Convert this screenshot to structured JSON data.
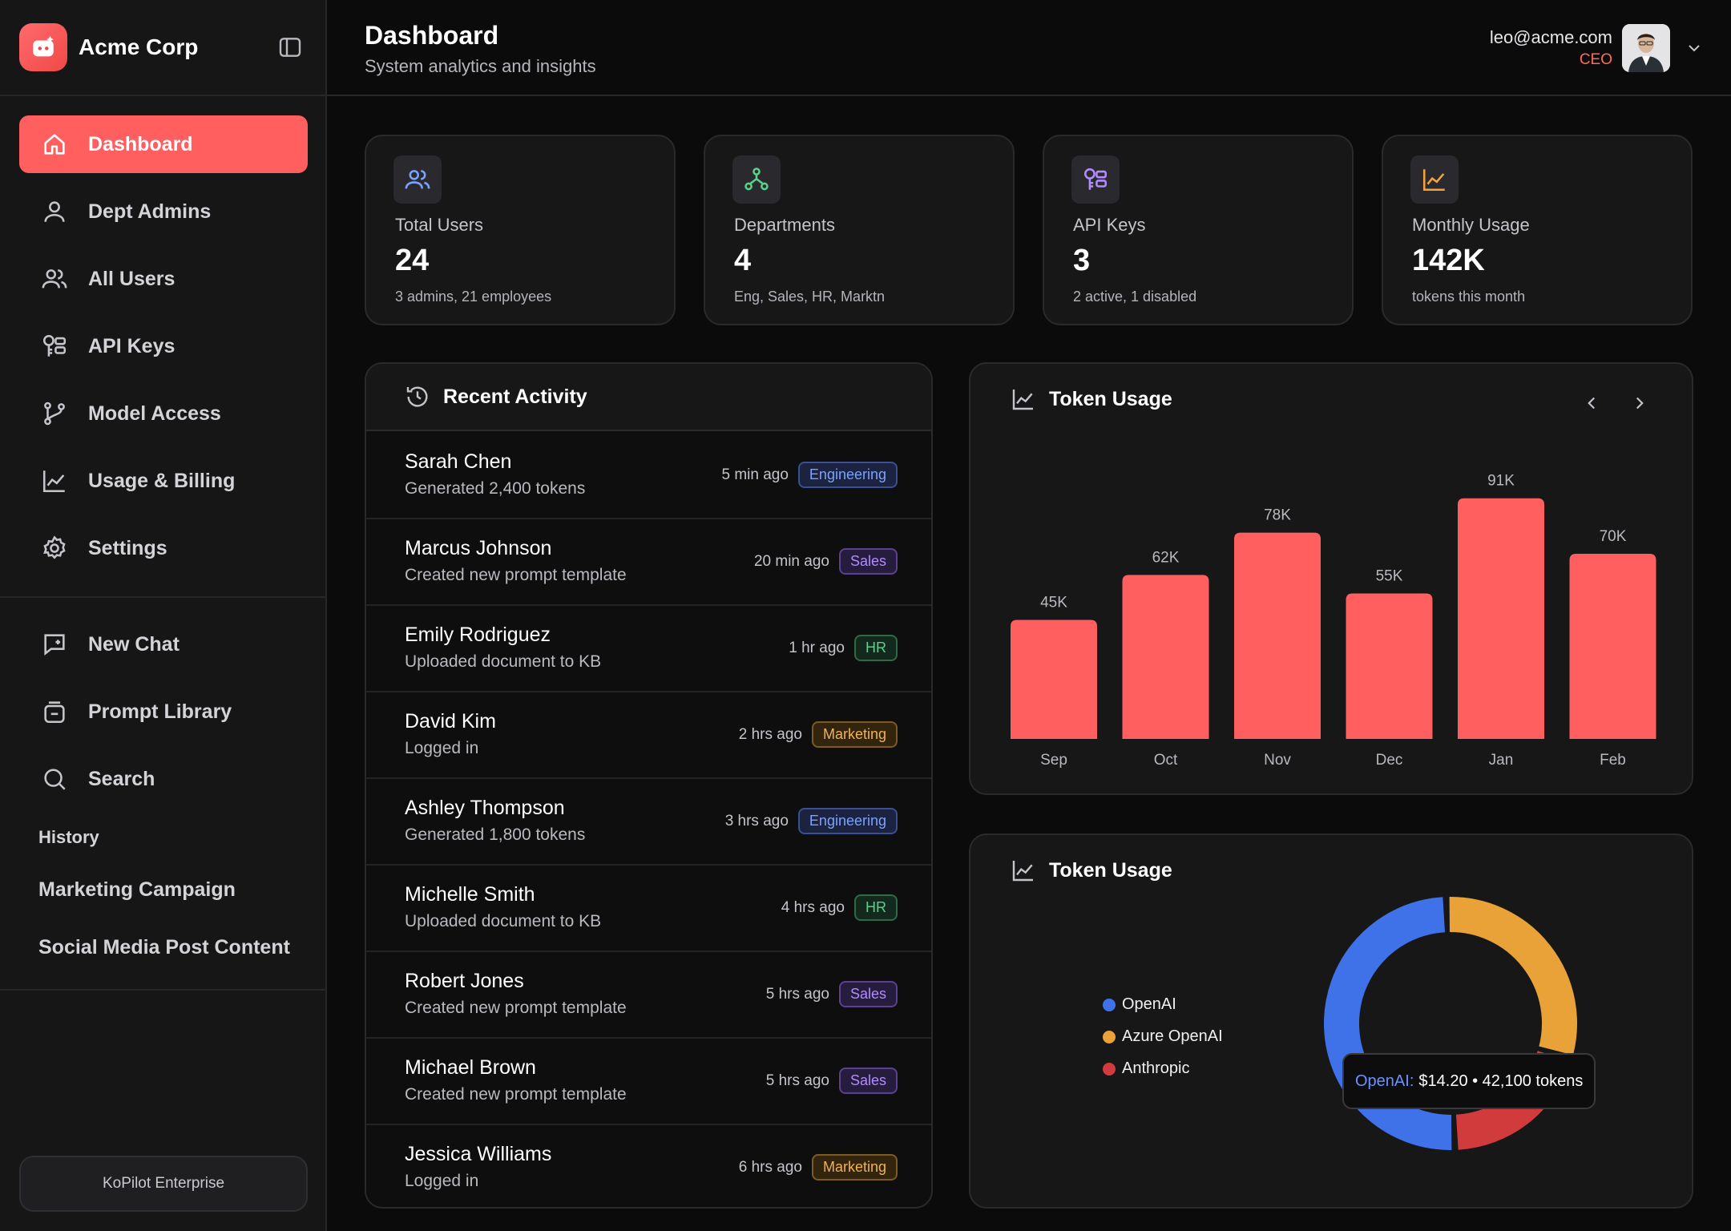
{
  "brand": {
    "name": "Acme Corp"
  },
  "sidebar": {
    "primary": [
      {
        "label": "Dashboard",
        "icon": "home-icon",
        "active": true
      },
      {
        "label": "Dept Admins",
        "icon": "user-icon"
      },
      {
        "label": "All Users",
        "icon": "users-icon"
      },
      {
        "label": "API Keys",
        "icon": "key-icon"
      },
      {
        "label": "Model Access",
        "icon": "branch-icon"
      },
      {
        "label": "Usage & Billing",
        "icon": "chart-line-icon"
      },
      {
        "label": "Settings",
        "icon": "gear-icon"
      }
    ],
    "secondary": [
      {
        "label": "New Chat",
        "icon": "chat-plus-icon"
      },
      {
        "label": "Prompt Library",
        "icon": "library-icon"
      },
      {
        "label": "Search",
        "icon": "search-icon"
      }
    ],
    "history_label": "History",
    "history": [
      "Marketing Campaign",
      "Social Media Post Content"
    ],
    "footer_button": "KoPilot Enterprise"
  },
  "header": {
    "title": "Dashboard",
    "subtitle": "System analytics and insights",
    "user_email": "leo@acme.com",
    "user_role": "CEO"
  },
  "stats": [
    {
      "label": "Total Users",
      "value": "24",
      "desc": "3 admins, 21 employees",
      "icon": "users-icon",
      "color": "#7aa2ff"
    },
    {
      "label": "Departments",
      "value": "4",
      "desc": "Eng, Sales, HR, Marktn",
      "icon": "hierarchy-icon",
      "color": "#5bd08a"
    },
    {
      "label": "API Keys",
      "value": "3",
      "desc": "2 active, 1 disabled",
      "icon": "key-icon",
      "color": "#b18cff"
    },
    {
      "label": "Monthly Usage",
      "value": "142K",
      "desc": "tokens this month",
      "icon": "chart-line-icon",
      "color": "#f2a23f"
    }
  ],
  "activity": {
    "title": "Recent Activity",
    "rows": [
      {
        "name": "Sarah Chen",
        "desc": "Generated 2,400 tokens",
        "time": "5 min ago",
        "dept": "Engineering",
        "dept_class": "engineering"
      },
      {
        "name": "Marcus Johnson",
        "desc": "Created new prompt template",
        "time": "20 min ago",
        "dept": "Sales",
        "dept_class": "sales"
      },
      {
        "name": "Emily Rodriguez",
        "desc": "Uploaded document to KB",
        "time": "1 hr ago",
        "dept": "HR",
        "dept_class": "hr"
      },
      {
        "name": "David Kim",
        "desc": "Logged in",
        "time": "2 hrs ago",
        "dept": "Marketing",
        "dept_class": "marketing"
      },
      {
        "name": "Ashley Thompson",
        "desc": "Generated 1,800 tokens",
        "time": "3 hrs ago",
        "dept": "Engineering",
        "dept_class": "engineering"
      },
      {
        "name": "Michelle Smith",
        "desc": "Uploaded document to KB",
        "time": "4 hrs ago",
        "dept": "HR",
        "dept_class": "hr"
      },
      {
        "name": "Robert Jones",
        "desc": "Created new prompt template",
        "time": "5 hrs ago",
        "dept": "Sales",
        "dept_class": "sales"
      },
      {
        "name": "Michael Brown",
        "desc": "Created new prompt template",
        "time": "5 hrs ago",
        "dept": "Sales",
        "dept_class": "sales"
      },
      {
        "name": "Jessica Williams",
        "desc": "Logged in",
        "time": "6 hrs ago",
        "dept": "Marketing",
        "dept_class": "marketing"
      }
    ]
  },
  "chart_data": [
    {
      "type": "bar",
      "title": "Token Usage",
      "categories": [
        "Sep",
        "Oct",
        "Nov",
        "Dec",
        "Jan",
        "Feb"
      ],
      "values": [
        45,
        62,
        78,
        55,
        91,
        70
      ],
      "value_labels": [
        "45K",
        "62K",
        "78K",
        "55K",
        "91K",
        "70K"
      ],
      "ylim": [
        0,
        100
      ],
      "grid": false,
      "color": "#ff5f5f"
    },
    {
      "type": "pie",
      "title": "Token Usage",
      "donut": true,
      "legend_position": "left",
      "labels": [
        "OpenAI",
        "Azure OpenAI",
        "Anthropic"
      ],
      "values": [
        50,
        30,
        20
      ],
      "colors": [
        "#3f72e8",
        "#e8a237",
        "#d23b3b"
      ],
      "tooltip": {
        "key": "OpenAI:",
        "text": "$14.20 • 42,100 tokens"
      }
    }
  ]
}
